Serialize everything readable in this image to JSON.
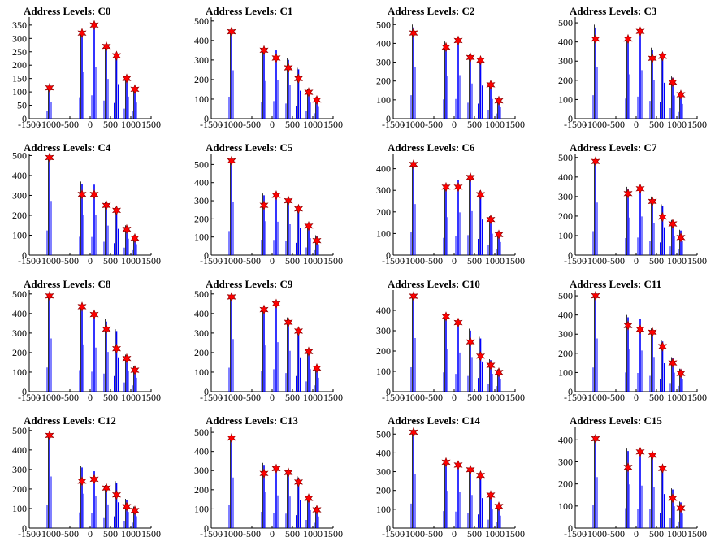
{
  "title_prefix": "Address Levels: ",
  "chart_data": [
    {
      "type": "bar",
      "title": "Address Levels: C0",
      "x": [
        -1000,
        -200,
        100,
        400,
        650,
        900,
        1100
      ],
      "peaks": [
        115,
        320,
        350,
        270,
        235,
        150,
        110
      ],
      "markers": [
        115,
        320,
        350,
        270,
        235,
        150,
        110
      ],
      "ylim": [
        0,
        380
      ],
      "yticks": [
        0,
        50,
        100,
        150,
        200,
        250,
        300,
        350
      ],
      "xlim": [
        -1500,
        1500
      ],
      "xticks": [
        -1500,
        -1000,
        -500,
        0,
        500,
        1000,
        1500
      ],
      "xlabel": "",
      "ylabel": ""
    },
    {
      "type": "bar",
      "title": "Address Levels: C1",
      "x": [
        -1000,
        -200,
        100,
        400,
        650,
        900,
        1100
      ],
      "peaks": [
        450,
        350,
        360,
        310,
        260,
        150,
        110
      ],
      "markers": [
        445,
        350,
        310,
        260,
        205,
        135,
        95
      ],
      "ylim": [
        0,
        520
      ],
      "yticks": [
        0,
        100,
        200,
        300,
        400,
        500
      ],
      "xlim": [
        -1500,
        1500
      ],
      "xticks": [
        -1500,
        -1000,
        -500,
        0,
        500,
        1000,
        1500
      ],
      "xlabel": "",
      "ylabel": ""
    },
    {
      "type": "bar",
      "title": "Address Levels: C2",
      "x": [
        -1000,
        -200,
        100,
        400,
        650,
        900,
        1100
      ],
      "peaks": [
        500,
        410,
        420,
        340,
        320,
        190,
        110
      ],
      "markers": [
        455,
        380,
        415,
        325,
        310,
        180,
        95
      ],
      "ylim": [
        0,
        540
      ],
      "yticks": [
        0,
        100,
        200,
        300,
        400,
        500
      ],
      "xlim": [
        -1500,
        1500
      ],
      "xticks": [
        -1500,
        -1000,
        -500,
        0,
        500,
        1000,
        1500
      ],
      "xlabel": "",
      "ylabel": ""
    },
    {
      "type": "bar",
      "title": "Address Levels: C3",
      "x": [
        -1000,
        -200,
        100,
        400,
        650,
        900,
        1100
      ],
      "peaks": [
        490,
        420,
        460,
        370,
        340,
        220,
        140
      ],
      "markers": [
        415,
        415,
        455,
        315,
        325,
        190,
        125
      ],
      "ylim": [
        0,
        530
      ],
      "yticks": [
        0,
        100,
        200,
        300,
        400,
        500
      ],
      "xlim": [
        -1500,
        1500
      ],
      "xticks": [
        -1500,
        -1000,
        -500,
        0,
        500,
        1000,
        1500
      ],
      "xlabel": "",
      "ylabel": ""
    },
    {
      "type": "bar",
      "title": "Address Levels: C4",
      "x": [
        -1000,
        -200,
        100,
        400,
        650,
        900,
        1100
      ],
      "peaks": [
        495,
        370,
        365,
        270,
        240,
        150,
        100
      ],
      "markers": [
        490,
        305,
        305,
        250,
        225,
        130,
        85
      ],
      "ylim": [
        0,
        510
      ],
      "yticks": [
        0,
        100,
        200,
        300,
        400,
        500
      ],
      "xlim": [
        -1500,
        1500
      ],
      "xticks": [
        -1500,
        -1000,
        -500,
        0,
        500,
        1000,
        1500
      ],
      "xlabel": "",
      "ylabel": ""
    },
    {
      "type": "bar",
      "title": "Address Levels: C5",
      "x": [
        -1000,
        -200,
        100,
        400,
        650,
        900,
        1100
      ],
      "peaks": [
        530,
        340,
        335,
        310,
        270,
        170,
        110
      ],
      "markers": [
        520,
        275,
        330,
        300,
        255,
        160,
        80
      ],
      "ylim": [
        0,
        560
      ],
      "yticks": [
        0,
        100,
        200,
        300,
        400,
        500
      ],
      "xlim": [
        -1500,
        1500
      ],
      "xticks": [
        -1500,
        -1000,
        -500,
        0,
        500,
        1000,
        1500
      ],
      "xlabel": "",
      "ylabel": ""
    },
    {
      "type": "bar",
      "title": "Address Levels: C6",
      "x": [
        -1000,
        -200,
        100,
        400,
        650,
        900,
        1100
      ],
      "peaks": [
        430,
        320,
        360,
        370,
        300,
        180,
        110
      ],
      "markers": [
        420,
        315,
        315,
        360,
        280,
        165,
        95
      ],
      "ylim": [
        0,
        470
      ],
      "yticks": [
        0,
        100,
        200,
        300,
        400
      ],
      "xlim": [
        -1500,
        1500
      ],
      "xticks": [
        -1500,
        -1000,
        -500,
        0,
        500,
        1000,
        1500
      ],
      "xlabel": "",
      "ylabel": ""
    },
    {
      "type": "bar",
      "title": "Address Levels: C7",
      "x": [
        -1000,
        -200,
        100,
        400,
        650,
        900,
        1100
      ],
      "peaks": [
        490,
        350,
        360,
        300,
        260,
        180,
        130
      ],
      "markers": [
        480,
        315,
        340,
        275,
        195,
        160,
        90
      ],
      "ylim": [
        0,
        520
      ],
      "yticks": [
        0,
        100,
        200,
        300,
        400,
        500
      ],
      "xlim": [
        -1500,
        1500
      ],
      "xticks": [
        -1500,
        -1000,
        -500,
        0,
        500,
        1000,
        1500
      ],
      "xlabel": "",
      "ylabel": ""
    },
    {
      "type": "bar",
      "title": "Address Levels: C8",
      "x": [
        -1000,
        -200,
        100,
        400,
        650,
        900,
        1100
      ],
      "peaks": [
        495,
        440,
        410,
        370,
        320,
        190,
        130
      ],
      "markers": [
        490,
        435,
        395,
        320,
        220,
        170,
        110
      ],
      "ylim": [
        0,
        520
      ],
      "yticks": [
        0,
        100,
        200,
        300,
        400,
        500
      ],
      "xlim": [
        -1500,
        1500
      ],
      "xticks": [
        -1500,
        -1000,
        -500,
        0,
        500,
        1000,
        1500
      ],
      "xlabel": "",
      "ylabel": ""
    },
    {
      "type": "bar",
      "title": "Address Levels: C9",
      "x": [
        -1000,
        -200,
        100,
        400,
        650,
        900,
        1100
      ],
      "peaks": [
        490,
        430,
        460,
        380,
        320,
        210,
        130
      ],
      "markers": [
        485,
        420,
        450,
        355,
        310,
        205,
        120
      ],
      "ylim": [
        0,
        520
      ],
      "yticks": [
        0,
        100,
        200,
        300,
        400,
        500
      ],
      "xlim": [
        -1500,
        1500
      ],
      "xticks": [
        -1500,
        -1000,
        -500,
        0,
        500,
        1000,
        1500
      ],
      "xlabel": "",
      "ylabel": ""
    },
    {
      "type": "bar",
      "title": "Address Levels: C10",
      "x": [
        -1000,
        -200,
        100,
        400,
        650,
        900,
        1100
      ],
      "peaks": [
        480,
        380,
        350,
        310,
        270,
        160,
        110
      ],
      "markers": [
        470,
        370,
        340,
        245,
        175,
        130,
        95
      ],
      "ylim": [
        0,
        500
      ],
      "yticks": [
        0,
        100,
        200,
        300,
        400
      ],
      "xlim": [
        -1500,
        1500
      ],
      "xticks": [
        -1500,
        -1000,
        -500,
        0,
        500,
        1000,
        1500
      ],
      "xlabel": "",
      "ylabel": ""
    },
    {
      "type": "bar",
      "title": "Address Levels: C11",
      "x": [
        -1000,
        -200,
        100,
        400,
        650,
        900,
        1100
      ],
      "peaks": [
        505,
        400,
        390,
        330,
        270,
        180,
        120
      ],
      "markers": [
        500,
        345,
        325,
        310,
        235,
        150,
        95
      ],
      "ylim": [
        0,
        530
      ],
      "yticks": [
        0,
        100,
        200,
        300,
        400,
        500
      ],
      "xlim": [
        -1500,
        1500
      ],
      "xticks": [
        -1500,
        -1000,
        -500,
        0,
        500,
        1000,
        1500
      ],
      "xlabel": "",
      "ylabel": ""
    },
    {
      "type": "bar",
      "title": "Address Levels: C12",
      "x": [
        -1000,
        -200,
        100,
        400,
        650,
        900,
        1100
      ],
      "peaks": [
        480,
        320,
        300,
        220,
        240,
        150,
        110
      ],
      "markers": [
        475,
        240,
        250,
        205,
        170,
        110,
        90
      ],
      "ylim": [
        0,
        520
      ],
      "yticks": [
        0,
        100,
        200,
        300,
        400,
        500
      ],
      "xlim": [
        -1500,
        1500
      ],
      "xticks": [
        -1500,
        -1000,
        -500,
        0,
        500,
        1000,
        1500
      ],
      "xlabel": "",
      "ylabel": ""
    },
    {
      "type": "bar",
      "title": "Address Levels: C13",
      "x": [
        -1000,
        -200,
        100,
        400,
        650,
        900,
        1100
      ],
      "peaks": [
        480,
        340,
        310,
        300,
        270,
        170,
        110
      ],
      "markers": [
        470,
        285,
        310,
        290,
        240,
        155,
        95
      ],
      "ylim": [
        0,
        530
      ],
      "yticks": [
        0,
        100,
        200,
        300,
        400,
        500
      ],
      "xlim": [
        -1500,
        1500
      ],
      "xticks": [
        -1500,
        -1000,
        -500,
        0,
        500,
        1000,
        1500
      ],
      "xlabel": "",
      "ylabel": ""
    },
    {
      "type": "bar",
      "title": "Address Levels: C14",
      "x": [
        -1000,
        -200,
        100,
        400,
        650,
        900,
        1100
      ],
      "peaks": [
        520,
        360,
        350,
        320,
        290,
        180,
        120
      ],
      "markers": [
        510,
        350,
        335,
        310,
        280,
        175,
        115
      ],
      "ylim": [
        0,
        540
      ],
      "yticks": [
        0,
        100,
        200,
        300,
        400,
        500
      ],
      "xlim": [
        -1500,
        1500
      ],
      "xticks": [
        -1500,
        -1000,
        -500,
        0,
        500,
        1000,
        1500
      ],
      "xlabel": "",
      "ylabel": ""
    },
    {
      "type": "bar",
      "title": "Address Levels: C15",
      "x": [
        -1000,
        -200,
        100,
        400,
        650,
        900,
        1100
      ],
      "peaks": [
        420,
        360,
        350,
        340,
        280,
        180,
        120
      ],
      "markers": [
        405,
        275,
        345,
        330,
        270,
        135,
        90
      ],
      "ylim": [
        0,
        460
      ],
      "yticks": [
        0,
        100,
        200,
        300,
        400
      ],
      "xlim": [
        -1500,
        1500
      ],
      "xticks": [
        -1500,
        -1000,
        -500,
        0,
        500,
        1000,
        1500
      ],
      "xlabel": "",
      "ylabel": ""
    }
  ],
  "colors": {
    "bar": "#0000ff",
    "marker": "#ff0000",
    "marker_edge": "#8b0000",
    "spike": "#000000",
    "axis": "#000000"
  }
}
